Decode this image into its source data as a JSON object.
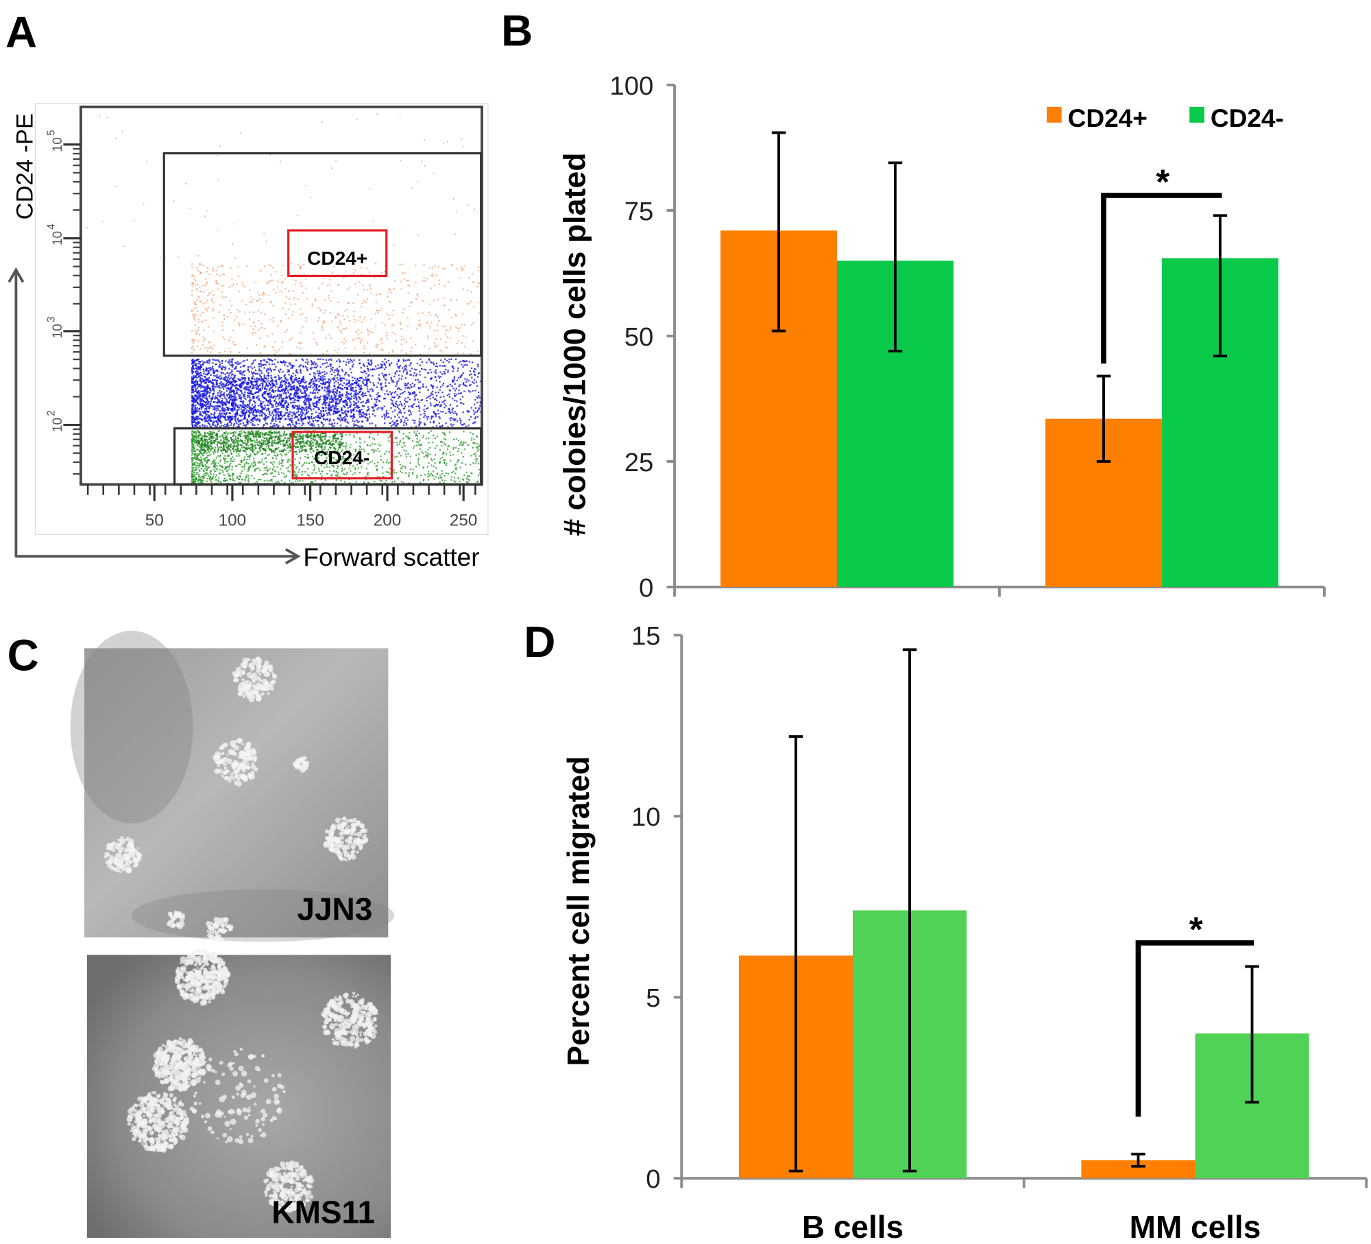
{
  "panels": {
    "a": "A",
    "b": "B",
    "c": "C",
    "d": "D"
  },
  "flow": {
    "y_label": "CD24 -PE",
    "x_label": "Forward scatter",
    "x_ticks": [
      "50",
      "100",
      "150",
      "200",
      "250"
    ],
    "y_ticks": [
      "10",
      "10",
      "10",
      "10"
    ],
    "y_tick_exponents": [
      "5",
      "4",
      "3",
      "2"
    ],
    "gate_pos": "CD24+",
    "gate_neg": "CD24-",
    "colors": {
      "pos": "#f0a070",
      "mid": "#1a1adc",
      "neg": "#2a9a2a",
      "gate_label_box": "#e41e26"
    }
  },
  "images": [
    {
      "label": "JJN3"
    },
    {
      "label": "KMS11"
    }
  ],
  "legend": [
    {
      "label": "CD24+",
      "color": "#FF7F00"
    },
    {
      "label": "CD24-",
      "color": "#08C94A"
    }
  ],
  "chart_data": [
    {
      "type": "bar",
      "panel": "B",
      "ylabel": "# coloies/1000 cells plated",
      "xlabel": "",
      "ylim": [
        0,
        100
      ],
      "yticks": [
        "0",
        "25",
        "50",
        "75",
        "100"
      ],
      "categories": [
        "B cells",
        "MM cells"
      ],
      "show_category_labels": false,
      "legend": "top-right",
      "series": [
        {
          "name": "CD24+",
          "color": "#FF7F00",
          "values": [
            71,
            33.5
          ],
          "err_low": [
            51,
            25
          ],
          "err_high": [
            90.5,
            42
          ]
        },
        {
          "name": "CD24-",
          "color": "#08C94A",
          "values": [
            65,
            65.5
          ],
          "err_low": [
            47,
            46
          ],
          "err_high": [
            84.5,
            74
          ]
        }
      ],
      "significance": [
        {
          "category": "MM cells",
          "label": "*",
          "bar_y": 78,
          "leg_bottom": 44.5
        }
      ]
    },
    {
      "type": "bar",
      "panel": "D",
      "ylabel": "Percent cell migrated",
      "xlabel": "",
      "ylim": [
        0,
        15
      ],
      "yticks": [
        "0",
        "5",
        "10",
        "15"
      ],
      "categories": [
        "B cells",
        "MM  cells"
      ],
      "show_category_labels": true,
      "series": [
        {
          "name": "CD24+",
          "color": "#FF7F00",
          "values": [
            6.15,
            0.5
          ],
          "err_low": [
            0.2,
            0.33
          ],
          "err_high": [
            12.2,
            0.67
          ]
        },
        {
          "name": "CD24-",
          "color": "#4FD256",
          "values": [
            7.4,
            4.0
          ],
          "err_low": [
            0.2,
            2.1
          ],
          "err_high": [
            14.6,
            5.85
          ]
        }
      ],
      "significance": [
        {
          "category": "MM  cells",
          "label": "*",
          "bar_y": 6.5,
          "leg_bottom": 1.7
        }
      ]
    }
  ]
}
